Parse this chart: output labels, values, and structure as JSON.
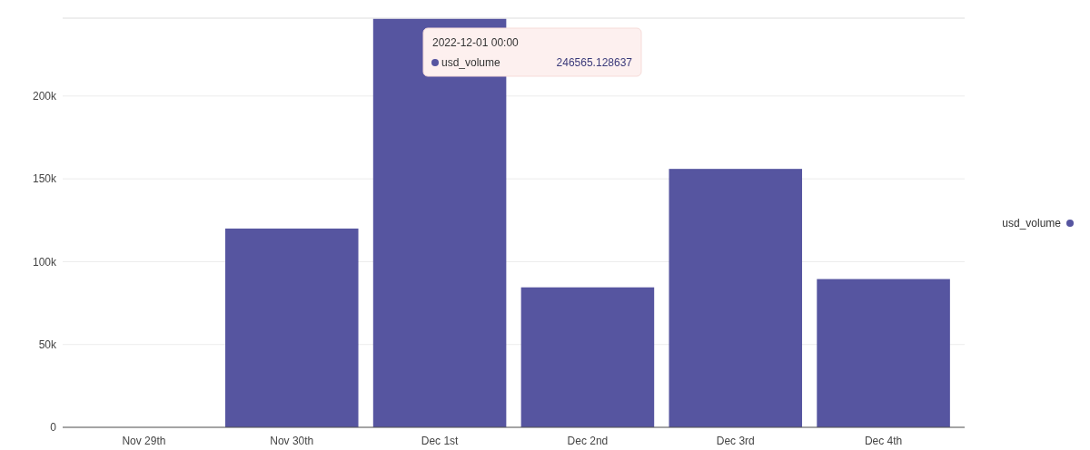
{
  "chart_data": {
    "type": "bar",
    "categories": [
      "Nov 29th",
      "Nov 30th",
      "Dec 1st",
      "Dec 2nd",
      "Dec 3rd",
      "Dec 4th"
    ],
    "series": [
      {
        "name": "usd_volume",
        "color": "#5655a0",
        "values": [
          0,
          120000,
          246565.128637,
          84500,
          156000,
          89500
        ]
      }
    ],
    "ylim": [
      0,
      247000
    ],
    "yticks": [
      {
        "value": 0,
        "label": "0"
      },
      {
        "value": 50000,
        "label": "50k"
      },
      {
        "value": 100000,
        "label": "100k"
      },
      {
        "value": 150000,
        "label": "150k"
      },
      {
        "value": 200000,
        "label": "200k"
      }
    ],
    "grid": "y",
    "legend": "right",
    "annotations": [
      "2022-12-01 00:00",
      "usd_volume",
      "246565.128637"
    ]
  }
}
